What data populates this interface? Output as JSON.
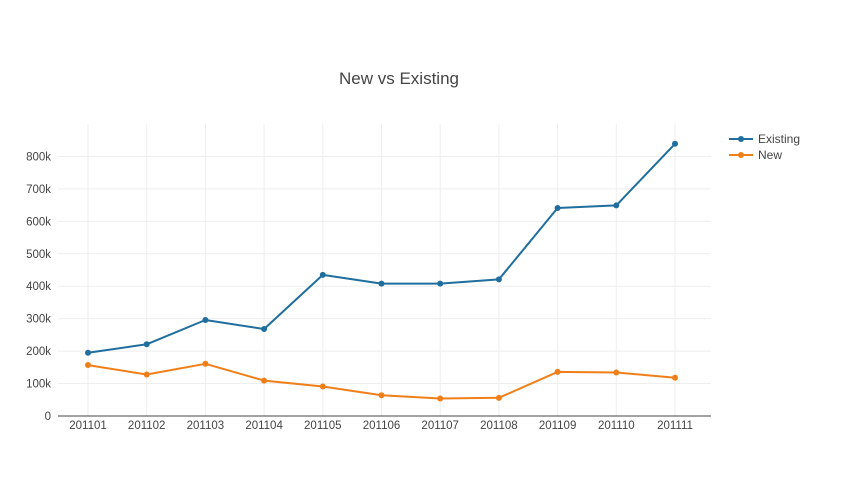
{
  "chart_data": {
    "type": "line",
    "title": "New vs Existing",
    "xlabel": "",
    "ylabel": "",
    "categories": [
      "201101",
      "201102",
      "201103",
      "201104",
      "201105",
      "201106",
      "201107",
      "201108",
      "201109",
      "201110",
      "201111"
    ],
    "ylim": [
      0,
      900000
    ],
    "yticks": [
      0,
      100000,
      200000,
      300000,
      400000,
      500000,
      600000,
      700000,
      800000
    ],
    "ytick_labels": [
      "0",
      "100k",
      "200k",
      "300k",
      "400k",
      "500k",
      "600k",
      "700k",
      "800k"
    ],
    "grid": true,
    "legend_position": "top-right",
    "series": [
      {
        "name": "Existing",
        "color": "#1f6e9e",
        "values": [
          195000,
          221000,
          296000,
          268000,
          435000,
          408000,
          408000,
          421000,
          641000,
          649000,
          839000
        ]
      },
      {
        "name": "New",
        "color": "#f07f1a",
        "values": [
          157000,
          128000,
          161000,
          109000,
          91000,
          64000,
          54000,
          56000,
          136000,
          134000,
          118000
        ]
      }
    ]
  }
}
